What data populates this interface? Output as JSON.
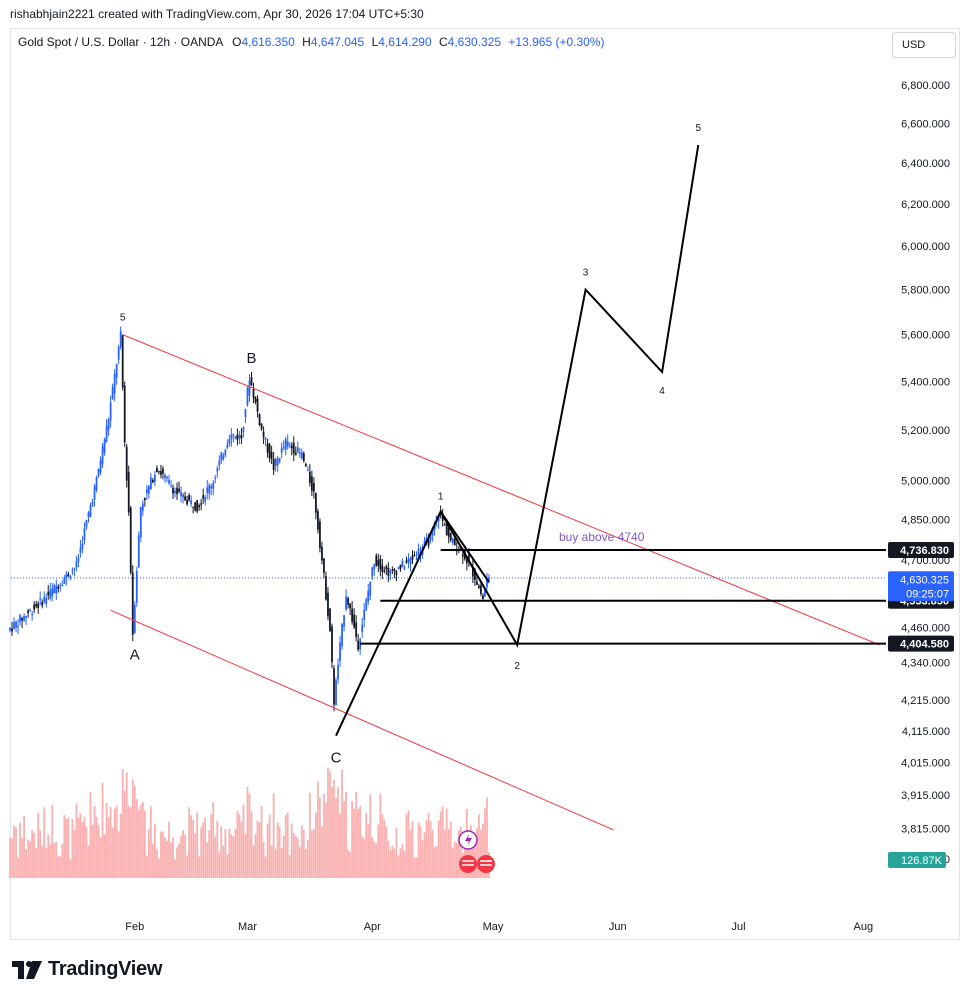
{
  "header": {
    "note": "rishabhjain2221 created with TradingView.com, Apr 30, 2026 17:04 UTC+5:30"
  },
  "legend": {
    "symbol": "Gold Spot / U.S. Dollar · 12h · OANDA",
    "open_label": "O",
    "open": "4,616.350",
    "high_label": "H",
    "high": "4,647.045",
    "low_label": "L",
    "low": "4,614.290",
    "close_label": "C",
    "close": "4,630.325",
    "change": "+13.965 (+0.30%)"
  },
  "toolbar": {
    "currency_button": "USD"
  },
  "footer": {
    "brand": "TradingView"
  },
  "colors": {
    "up": "#2962ff",
    "down": "#131722",
    "channel": "#f23645",
    "volume_up": "#f7a9a7",
    "volume_down": "#f7a9a7",
    "price_tag": "#2962ff",
    "volume_tag": "#26a69a",
    "annotation": "#7e57c2"
  },
  "chart_data": {
    "type": "candlestick",
    "title": "Gold Spot / U.S. Dollar · 12h · OANDA",
    "y_scale": "log",
    "ylim": [
      3730,
      7000
    ],
    "x_ticks": [
      "Feb",
      "Mar",
      "Apr",
      "May",
      "Jun",
      "Jul",
      "Aug"
    ],
    "y_ticks": [
      3725,
      3815,
      3915,
      4015,
      4115,
      4215,
      4340,
      4460,
      4580,
      4700,
      4850,
      5000,
      5200,
      5400,
      5600,
      5800,
      6000,
      6200,
      6400,
      6600,
      6800
    ],
    "y_tick_labels": [
      "3,725.000",
      "3,815.000",
      "3,915.000",
      "4,015.000",
      "4,115.000",
      "4,215.000",
      "4,340.000",
      "4,460.000",
      "4,580.000",
      "4,700.000",
      "4,850.000",
      "5,000.000",
      "5,200.000",
      "5,400.000",
      "5,600.000",
      "5,800.000",
      "6,000.000",
      "6,200.000",
      "6,400.000",
      "6,600.000",
      "6,800.000"
    ],
    "price_path": [
      [
        "2026-01-01",
        4450
      ],
      [
        "2026-01-10",
        4560
      ],
      [
        "2026-01-18",
        4680
      ],
      [
        "2026-01-23",
        5000
      ],
      [
        "2026-01-26",
        5250
      ],
      [
        "2026-01-29",
        5595
      ],
      [
        "2026-01-30",
        5150
      ],
      [
        "2026-01-31",
        4880
      ],
      [
        "2026-02-01",
        4440
      ],
      [
        "2026-02-03",
        4900
      ],
      [
        "2026-02-07",
        5050
      ],
      [
        "2026-02-12",
        4950
      ],
      [
        "2026-02-17",
        4900
      ],
      [
        "2026-02-21",
        5000
      ],
      [
        "2026-02-25",
        5180
      ],
      [
        "2026-02-28",
        5170
      ],
      [
        "2026-03-02",
        5420
      ],
      [
        "2026-03-05",
        5200
      ],
      [
        "2026-03-08",
        5050
      ],
      [
        "2026-03-11",
        5150
      ],
      [
        "2026-03-15",
        5100
      ],
      [
        "2026-03-18",
        4950
      ],
      [
        "2026-03-20",
        4700
      ],
      [
        "2026-03-22",
        4450
      ],
      [
        "2026-03-23",
        4210
      ],
      [
        "2026-03-26",
        4580
      ],
      [
        "2026-03-29",
        4400
      ],
      [
        "2026-04-02",
        4700
      ],
      [
        "2026-04-06",
        4650
      ],
      [
        "2026-04-11",
        4700
      ],
      [
        "2026-04-16",
        4780
      ],
      [
        "2026-04-18",
        4880
      ],
      [
        "2026-04-21",
        4770
      ],
      [
        "2026-04-24",
        4730
      ],
      [
        "2026-04-27",
        4640
      ],
      [
        "2026-04-29",
        4560
      ],
      [
        "2026-04-30",
        4630
      ]
    ],
    "volume_peak": "126.87K",
    "series": [
      {
        "name": "Channel upper",
        "x": [
          "2026-01-29",
          "2026-08-05"
        ],
        "y": [
          5600,
          4400
        ]
      },
      {
        "name": "Channel lower",
        "x": [
          "2026-01-26",
          "2026-05-31"
        ],
        "y": [
          4520,
          3810
        ]
      },
      {
        "name": "Wave projection",
        "x": [
          "2026-03-23",
          "2026-04-18",
          "2026-05-07",
          "2026-05-24",
          "2026-06-12",
          "2026-06-21"
        ],
        "y": [
          4100,
          4880,
          4400,
          5800,
          5440,
          6490
        ]
      },
      {
        "name": "Wave 1-2 line",
        "x": [
          "2026-04-18",
          "2026-04-30"
        ],
        "y": [
          4880,
          4620
        ]
      }
    ],
    "annotations": [
      {
        "text": "5",
        "x": "2026-01-29",
        "y": 5600
      },
      {
        "text": "A",
        "x": "2026-02-01",
        "y": 4440
      },
      {
        "text": "B",
        "x": "2026-03-02",
        "y": 5420
      },
      {
        "text": "C",
        "x": "2026-03-23",
        "y": 4100
      },
      {
        "text": "1",
        "x": "2026-04-18",
        "y": 4880
      },
      {
        "text": "2",
        "x": "2026-05-07",
        "y": 4400
      },
      {
        "text": "3",
        "x": "2026-05-24",
        "y": 5800
      },
      {
        "text": "4",
        "x": "2026-06-12",
        "y": 5440
      },
      {
        "text": "5",
        "x": "2026-06-21",
        "y": 6490
      },
      {
        "text": "buy above 4740",
        "x": "2026-05-28",
        "y": 4740
      }
    ],
    "levels": [
      {
        "label": "4,736.830",
        "y": 4736.83,
        "from": "2026-04-18"
      },
      {
        "label": "4,553.850",
        "y": 4553.85,
        "from": "2026-04-03"
      },
      {
        "label": "4,404.580",
        "y": 4404.58,
        "from": "2026-03-29"
      }
    ],
    "last_price": {
      "label": "4,630.325",
      "countdown": "09:25:07",
      "y": 4630.325
    }
  }
}
